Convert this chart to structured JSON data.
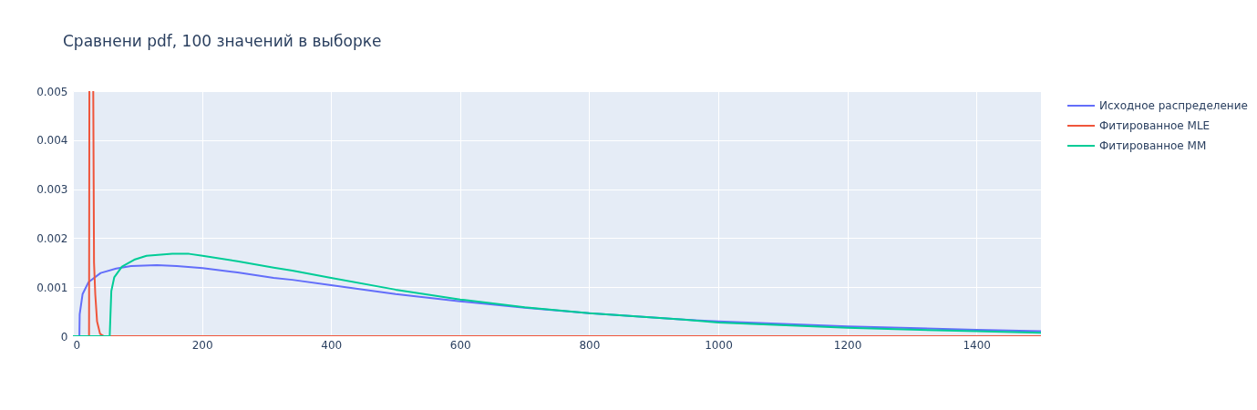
{
  "chart_data": {
    "type": "line",
    "title": "Сравнени pdf, 100 значений в выборке",
    "xlim": [
      0,
      1500
    ],
    "xticks": [
      0,
      200,
      400,
      600,
      800,
      1000,
      1200,
      1400
    ],
    "ylim": [
      0,
      0.005
    ],
    "yticks": [
      0,
      0.001,
      0.002,
      0.003,
      0.004,
      0.005
    ],
    "grid": true,
    "legend": "top right",
    "line_style": "solid",
    "series": [
      {
        "name": "Исходное распределение",
        "color": "#636efa",
        "x": [
          10,
          10.5,
          15,
          24,
          43,
          67,
          90,
          130,
          161,
          201,
          255,
          311,
          340,
          400,
          500,
          600,
          700,
          800,
          946,
          1000,
          1200,
          1400,
          1500
        ],
        "values": [
          0,
          0.00045,
          0.00086,
          0.0011,
          0.00129,
          0.00138,
          0.00143,
          0.00145,
          0.00143,
          0.00139,
          0.0013,
          0.00119,
          0.00115,
          0.00104,
          0.00086,
          0.00071,
          0.00058,
          0.00047,
          0.00034,
          0.0003,
          0.0002,
          0.00013,
          0.0001
        ]
      },
      {
        "name": "Фитированное MLE",
        "color": "#ef553b",
        "x": [
          25,
          25.5,
          28.5,
          31.5,
          32.7,
          34.6,
          37.4,
          42,
          48,
          1500
        ],
        "values": [
          0,
          0.005,
          null,
          0.005,
          0.0015,
          0.00086,
          0.0003,
          5e-05,
          0,
          0
        ]
      },
      {
        "name": "Фитированное MM",
        "color": "#00cc96",
        "x": [
          0,
          57,
          59.5,
          64,
          76,
          95,
          114,
          154,
          180,
          201,
          255,
          311,
          340,
          400,
          500,
          600,
          700,
          800,
          946,
          1000,
          1200,
          1400,
          1500
        ],
        "values": [
          0,
          0,
          0.00092,
          0.0012,
          0.00142,
          0.00156,
          0.00164,
          0.00168,
          0.00168,
          0.00164,
          0.00153,
          0.0014,
          0.00134,
          0.00119,
          0.00095,
          0.00075,
          0.00059,
          0.00047,
          0.00034,
          0.00028,
          0.00017,
          0.0001,
          7e-05
        ]
      }
    ]
  }
}
